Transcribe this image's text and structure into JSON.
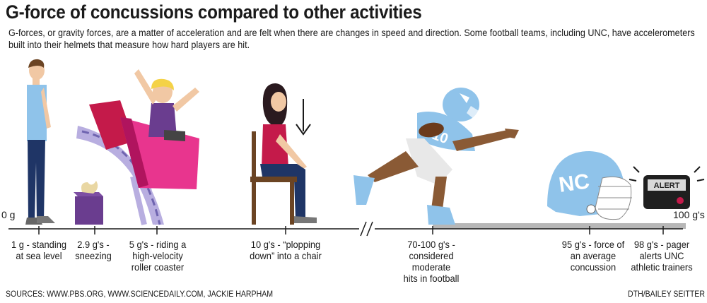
{
  "title": "G-force of concussions compared to other activities",
  "subtitle": "G-forces, or gravity forces, are a matter of acceleration and are felt when there are changes in speed and direction. Some football teams, including UNC, have accelerometers built into their helmets that measure how hard players are hit.",
  "axis": {
    "start_label": "0 g",
    "end_label": "100 g's",
    "break_symbol": "//"
  },
  "milestones": [
    {
      "text": "1 g - standing\nat sea level",
      "icon": "standing-man-icon"
    },
    {
      "text": "2.9 g's -\nsneezing",
      "icon": "tissue-box-icon"
    },
    {
      "text": "5 g's - riding a\nhigh-velocity\nroller coaster",
      "icon": "roller-coaster-icon"
    },
    {
      "text": "10 g's - “plopping\ndown” into a chair",
      "icon": "sitting-woman-icon"
    },
    {
      "text": "70-100 g's -\nconsidered moderate\nhits in football",
      "icon": "football-player-icon"
    },
    {
      "text": "95 g's - force of\nan average\nconcussion",
      "icon": "helmet-icon"
    },
    {
      "text": "98 g's - pager\nalerts UNC\nathletic trainers",
      "icon": "pager-icon"
    }
  ],
  "player_number": "10",
  "helmet_logo": "NC",
  "pager_text": "ALERT",
  "sources": "SOURCES: WWW.PBS.ORG, WWW.SCIENCEDAILY.COM, JACKIE HARPHAM",
  "credit": "DTH/BAILEY SEITTER",
  "colors": {
    "carolina_blue": "#8fc3ea",
    "skin": "#f1c8a4",
    "coaster_pink": "#e8358e",
    "coaster_red": "#c41a4a",
    "track_purple": "#b8aee0",
    "range_bar": "#b7b7b7"
  }
}
